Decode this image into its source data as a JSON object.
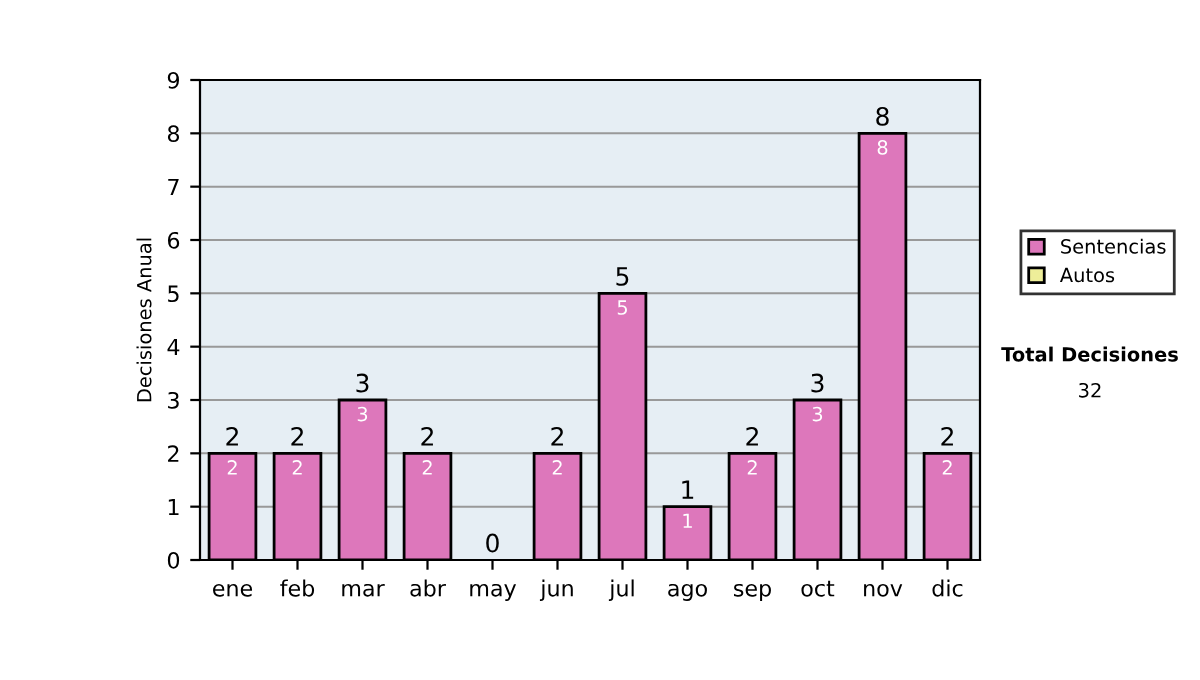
{
  "chart_data": {
    "type": "bar",
    "ylabel": "Decisiones Anual",
    "categories": [
      "ene",
      "feb",
      "mar",
      "abr",
      "may",
      "jun",
      "jul",
      "ago",
      "sep",
      "oct",
      "nov",
      "dic"
    ],
    "stacked": true,
    "series": [
      {
        "name": "Sentencias",
        "color": "#dd77bb",
        "values": [
          2,
          2,
          3,
          2,
          0,
          2,
          5,
          1,
          2,
          3,
          8,
          2
        ],
        "value_labels": [
          "2",
          "2",
          "3",
          "2",
          null,
          "2",
          "5",
          "1",
          "2",
          "3",
          "8",
          "2"
        ]
      },
      {
        "name": "Autos",
        "color": "#eeee99",
        "values": [
          0,
          0,
          0,
          0,
          0,
          0,
          0,
          0,
          0,
          0,
          0,
          0
        ]
      }
    ],
    "totals": [
      "2",
      "2",
      "3",
      "2",
      "0",
      "2",
      "5",
      "1",
      "2",
      "3",
      "8",
      "2"
    ],
    "ylim": [
      0,
      9
    ],
    "yticks": [
      0,
      1,
      2,
      3,
      4,
      5,
      6,
      7,
      8,
      9
    ],
    "grid": "y",
    "legend": "right",
    "annotations": [
      "Total Decisiones",
      "32"
    ]
  }
}
